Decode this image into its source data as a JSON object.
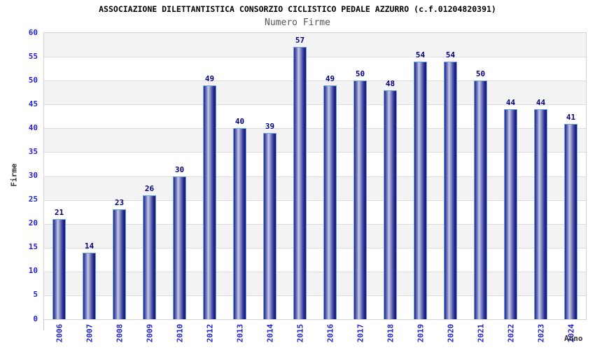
{
  "chart_data": {
    "type": "bar",
    "title": "ASSOCIAZIONE DILETTANTISTICA CONSORZIO CICLISTICO PEDALE AZZURRO (c.f.01204820391)",
    "subtitle": "Numero Firme",
    "xlabel": "Anno",
    "ylabel": "Firme",
    "categories": [
      "2006",
      "2007",
      "2008",
      "2009",
      "2010",
      "2012",
      "2013",
      "2014",
      "2015",
      "2016",
      "2017",
      "2018",
      "2019",
      "2020",
      "2021",
      "2022",
      "2023",
      "2024"
    ],
    "values": [
      21,
      14,
      23,
      26,
      30,
      49,
      40,
      39,
      57,
      49,
      50,
      48,
      54,
      54,
      50,
      44,
      44,
      41
    ],
    "ylim": [
      0,
      60
    ],
    "ytick_step": 5,
    "legend_position": "none",
    "grid": "horizontal-alternating-bands",
    "colors": {
      "bar_edge_dark": "#23238c",
      "bar_mid": "#7d85c2",
      "bar_highlight": "#c7cde8",
      "bar_outline": "#6aa6e2",
      "value_label": "#000080",
      "tick_label": "#2323cd",
      "axis_title": "#333333",
      "title": "#000000",
      "subtitle": "#555555",
      "band_gray": "#f3f3f3",
      "band_white": "#ffffff",
      "gridline": "#dcdcdc",
      "plot_border": "#d4d4d4"
    }
  }
}
